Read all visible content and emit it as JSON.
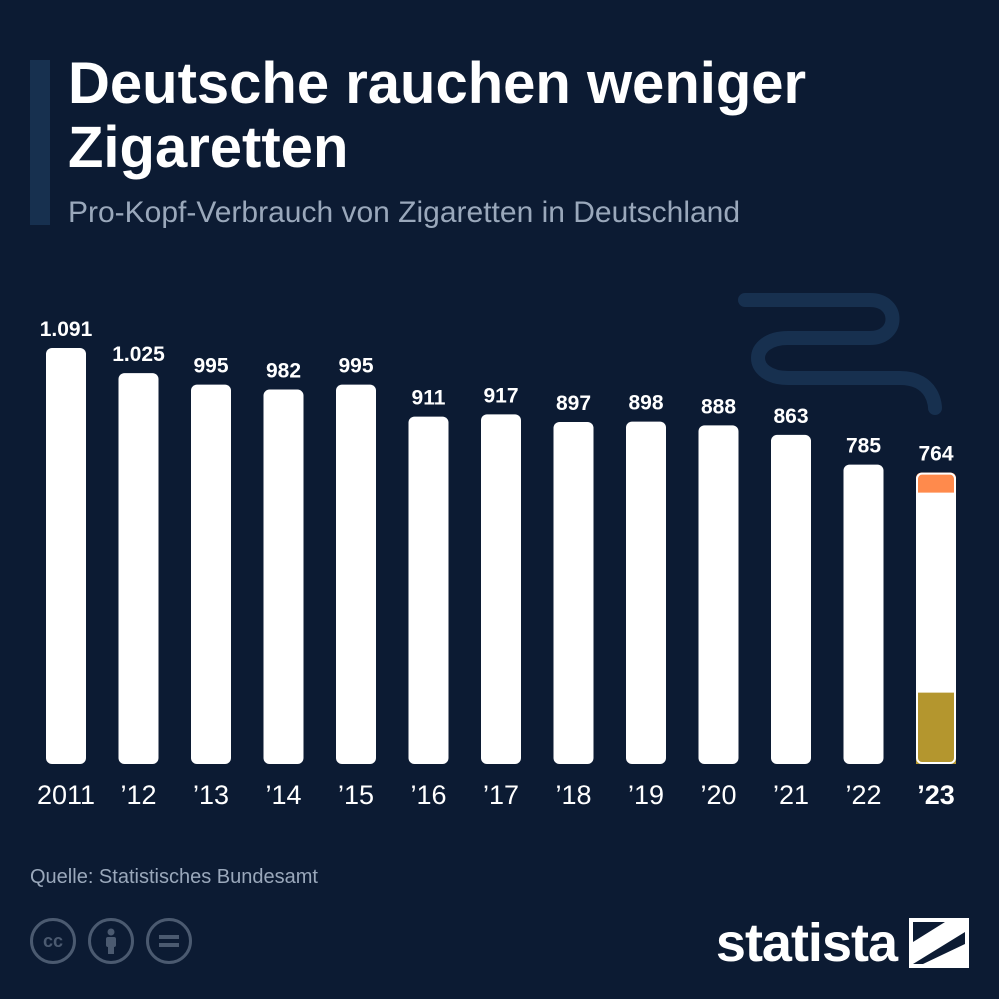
{
  "header": {
    "title": "Deutsche rauchen weniger Zigaretten",
    "subtitle": "Pro-Kopf-Verbrauch von Zigaretten in Deutschland"
  },
  "colors": {
    "background": "#0c1b33",
    "bar": "#ffffff",
    "filter": "#b4962e",
    "ember": "#ff8a4c",
    "smoke": "#17304f"
  },
  "chart_data": {
    "type": "bar",
    "categories": [
      "2011",
      "’12",
      "’13",
      "’14",
      "’15",
      "’16",
      "’17",
      "’18",
      "’19",
      "’20",
      "’21",
      "’22",
      "’23"
    ],
    "values": [
      1091,
      1025,
      995,
      982,
      995,
      911,
      917,
      897,
      898,
      888,
      863,
      785,
      764
    ],
    "value_labels": [
      "1.091",
      "1.025",
      "995",
      "982",
      "995",
      "911",
      "917",
      "897",
      "898",
      "888",
      "863",
      "785",
      "764"
    ],
    "title": "Deutsche rauchen weniger Zigaretten",
    "subtitle": "Pro-Kopf-Verbrauch von Zigaretten in Deutschland",
    "xlabel": "",
    "ylabel": "",
    "ylim": [
      0,
      1091
    ],
    "grid": false,
    "highlight_last": true
  },
  "footer": {
    "source": "Quelle: Statistisches Bundesamt",
    "license_icons": [
      "cc-icon",
      "by-person-icon",
      "nd-equals-icon"
    ],
    "cc_label": "cc",
    "logo_text": "statista"
  }
}
